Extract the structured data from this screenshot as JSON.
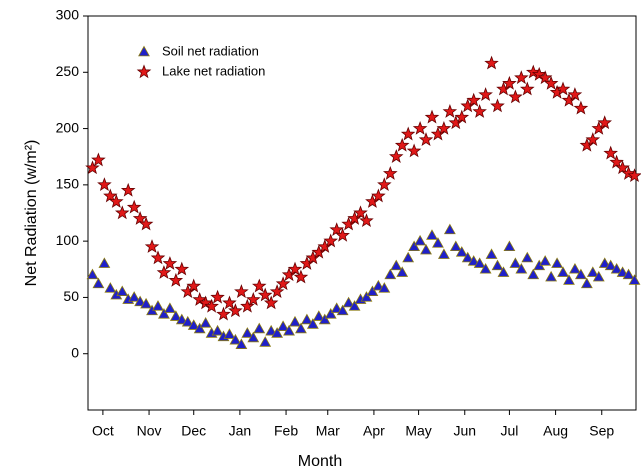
{
  "chart_data": {
    "type": "scatter",
    "xlabel": "Month",
    "ylabel": "Net Radiation (w/m²)",
    "x": [
      8,
      12,
      16,
      20,
      24,
      28,
      32,
      36,
      40,
      44,
      48,
      52,
      56,
      60,
      64,
      68,
      72,
      76,
      80,
      84,
      88,
      92,
      96,
      100,
      104,
      108,
      112,
      116,
      120,
      124,
      128,
      132,
      136,
      140,
      144,
      148,
      152,
      156,
      160,
      164,
      168,
      172,
      176,
      180,
      184,
      188,
      192,
      196,
      200,
      204,
      208,
      212,
      216,
      220,
      224,
      228,
      232,
      236,
      240,
      244,
      248,
      252,
      256,
      260,
      264,
      268,
      272,
      276,
      280,
      284,
      288,
      292,
      296,
      300,
      304,
      308,
      312,
      316,
      320,
      324,
      328,
      332,
      336,
      340,
      344,
      348,
      352,
      356,
      360,
      364,
      368,
      372
    ],
    "series": [
      {
        "name": "Soil net radiation",
        "color": "#2020c8",
        "marker": "triangle",
        "values": [
          70,
          62,
          80,
          58,
          52,
          55,
          48,
          50,
          46,
          44,
          38,
          42,
          35,
          40,
          33,
          30,
          28,
          25,
          22,
          27,
          18,
          20,
          15,
          17,
          12,
          8,
          18,
          14,
          22,
          10,
          20,
          18,
          24,
          20,
          28,
          22,
          30,
          26,
          33,
          30,
          35,
          40,
          38,
          45,
          42,
          48,
          50,
          55,
          60,
          58,
          70,
          78,
          72,
          85,
          95,
          100,
          92,
          105,
          98,
          88,
          110,
          95,
          90,
          85,
          82,
          80,
          75,
          88,
          78,
          72,
          95,
          80,
          75,
          85,
          70,
          78,
          82,
          68,
          80,
          72,
          65,
          75,
          70,
          62,
          72,
          68,
          80,
          78,
          75,
          72,
          70,
          65
        ]
      },
      {
        "name": "Lake net radiation",
        "color": "#e01818",
        "marker": "star",
        "values": [
          165,
          172,
          150,
          140,
          135,
          125,
          145,
          130,
          120,
          115,
          95,
          85,
          72,
          80,
          65,
          75,
          55,
          60,
          48,
          45,
          42,
          50,
          35,
          45,
          38,
          55,
          42,
          48,
          60,
          52,
          45,
          55,
          62,
          70,
          75,
          68,
          80,
          85,
          90,
          95,
          100,
          110,
          105,
          115,
          120,
          125,
          118,
          135,
          140,
          150,
          160,
          175,
          185,
          195,
          180,
          200,
          190,
          210,
          195,
          200,
          215,
          205,
          210,
          220,
          225,
          215,
          230,
          258,
          220,
          235,
          240,
          228,
          245,
          235,
          250,
          248,
          245,
          240,
          232,
          235,
          225,
          230,
          218,
          185,
          190,
          200,
          205,
          178,
          170,
          165,
          160,
          158
        ]
      }
    ],
    "xlim": [
      5,
      373
    ],
    "xticks": [
      {
        "value": 15,
        "label": "Oct"
      },
      {
        "value": 46,
        "label": "Nov"
      },
      {
        "value": 76,
        "label": "Dec"
      },
      {
        "value": 107,
        "label": "Jan"
      },
      {
        "value": 138,
        "label": "Feb"
      },
      {
        "value": 166,
        "label": "Mar"
      },
      {
        "value": 197,
        "label": "Apr"
      },
      {
        "value": 227,
        "label": "May"
      },
      {
        "value": 258,
        "label": "Jun"
      },
      {
        "value": 288,
        "label": "Jul"
      },
      {
        "value": 319,
        "label": "Aug"
      },
      {
        "value": 350,
        "label": "Sep"
      }
    ],
    "ylim": [
      -50,
      300
    ],
    "yticks": [
      0,
      50,
      100,
      150,
      200,
      250,
      300
    ],
    "legend": "upper left"
  }
}
